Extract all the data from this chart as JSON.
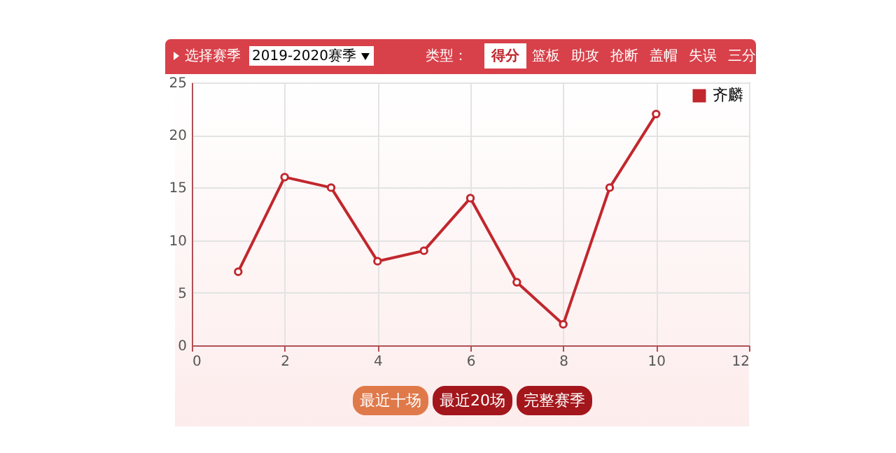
{
  "chart_data": {
    "type": "line",
    "x": [
      1,
      2,
      3,
      4,
      5,
      6,
      7,
      8,
      9,
      10
    ],
    "series": [
      {
        "name": "齐麟",
        "color": "#c1272d",
        "values": [
          7,
          16,
          15,
          8,
          9,
          14,
          6,
          2,
          15,
          22
        ]
      }
    ],
    "xlim": [
      0,
      12
    ],
    "xticks": [
      0,
      2,
      4,
      6,
      8,
      10,
      12
    ],
    "ylim": [
      0,
      25
    ],
    "yticks": [
      0,
      5,
      10,
      15,
      20,
      25
    ],
    "grid": true,
    "legend": "top right",
    "marker": "circle",
    "line_style": "solid",
    "annotations": [
      "选择赛季",
      "2019-2020赛季",
      "类型：",
      "得分",
      "篮板",
      "助攻",
      "抢断",
      "盖帽",
      "失误",
      "三分",
      "最近十场",
      "最近20场",
      "完整赛季"
    ]
  }
}
